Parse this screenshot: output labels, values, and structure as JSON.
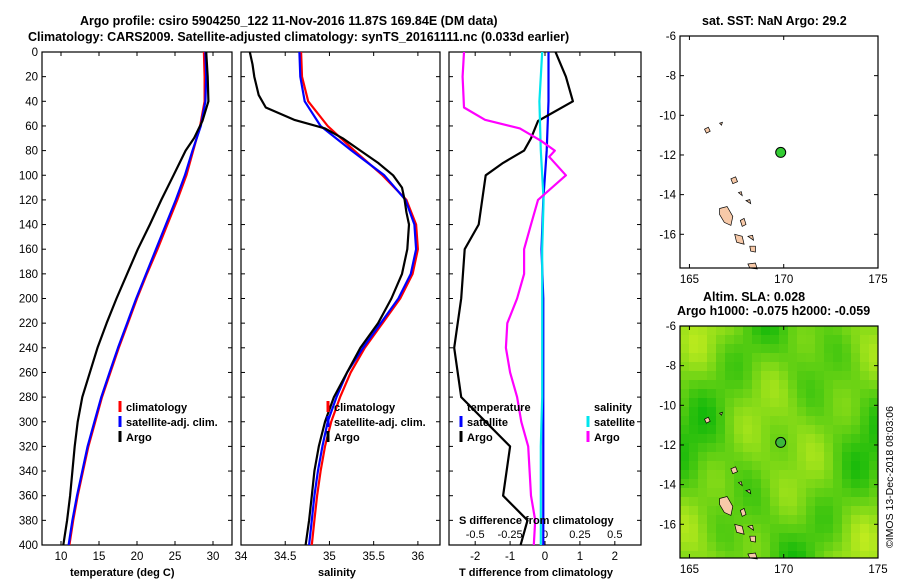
{
  "title": {
    "line1": "Argo profile: csiro 5904250_122 11-Nov-2016 11.87S 169.84E (DM data)",
    "line2": "Climatology: CARS2009. Satellite-adjusted climatology: synTS_20161111.nc (0.033d earlier)"
  },
  "colors": {
    "climatology": "#ff0000",
    "satellite": "#0000ff",
    "argo": "#000000",
    "s_climatology": "#ff00ff",
    "s_satellite": "#00e5ee",
    "land": "#f7c9a8"
  },
  "chart_data": [
    {
      "id": "temperature",
      "type": "line",
      "xlabel": "temperature (deg C)",
      "ylabel": "depth",
      "xlim": [
        7.5,
        32.5
      ],
      "ylim": [
        0,
        400
      ],
      "xticks": [
        "10",
        "15",
        "20",
        "25",
        "30"
      ],
      "yticks": [
        "0",
        "20",
        "40",
        "60",
        "80",
        "100",
        "120",
        "140",
        "160",
        "180",
        "200",
        "220",
        "240",
        "260",
        "280",
        "300",
        "320",
        "340",
        "360",
        "380",
        "400"
      ],
      "legend": [
        "climatology",
        "satellite-adj. clim.",
        "Argo"
      ],
      "series": [
        {
          "name": "climatology",
          "depth": [
            0,
            20,
            40,
            60,
            80,
            100,
            120,
            140,
            160,
            180,
            200,
            220,
            240,
            260,
            280,
            300,
            320,
            340,
            360,
            380,
            400
          ],
          "values": [
            28.8,
            28.9,
            28.9,
            28.3,
            27.4,
            26.5,
            25.3,
            24.0,
            22.7,
            21.3,
            20.0,
            18.8,
            17.6,
            16.5,
            15.4,
            14.5,
            13.6,
            12.9,
            12.2,
            11.6,
            11.1
          ]
        },
        {
          "name": "satellite-adj. clim.",
          "depth": [
            0,
            20,
            40,
            60,
            80,
            100,
            120,
            140,
            160,
            180,
            200,
            220,
            240,
            260,
            280,
            300,
            320,
            340,
            360,
            380,
            400
          ],
          "values": [
            29.0,
            29.1,
            29.0,
            28.4,
            27.3,
            26.3,
            25.1,
            23.8,
            22.5,
            21.2,
            19.9,
            18.7,
            17.5,
            16.4,
            15.3,
            14.4,
            13.5,
            12.8,
            12.1,
            11.5,
            11.0
          ]
        },
        {
          "name": "Argo",
          "depth": [
            0,
            20,
            40,
            56,
            70,
            80,
            90,
            100,
            120,
            140,
            160,
            180,
            200,
            220,
            240,
            260,
            280,
            300,
            320,
            340,
            360,
            380,
            400
          ],
          "values": [
            29.1,
            29.3,
            29.4,
            28.6,
            27.5,
            26.4,
            25.6,
            24.8,
            23.2,
            21.7,
            20.1,
            18.7,
            17.3,
            16.0,
            14.8,
            13.8,
            12.8,
            12.2,
            11.8,
            11.5,
            11.2,
            10.8,
            10.3
          ]
        }
      ]
    },
    {
      "id": "salinity",
      "type": "line",
      "xlabel": "salinity",
      "ylabel": "depth",
      "xlim": [
        34,
        36.25
      ],
      "ylim": [
        0,
        400
      ],
      "xticks": [
        "34",
        "34.5",
        "35",
        "35.5",
        "36"
      ],
      "legend": [
        "climatology",
        "satellite-adj. clim.",
        "Argo"
      ],
      "series": [
        {
          "name": "climatology",
          "depth": [
            0,
            20,
            40,
            60,
            80,
            100,
            120,
            140,
            160,
            180,
            200,
            220,
            240,
            260,
            280,
            300,
            320,
            340,
            360,
            380,
            400
          ],
          "values": [
            34.68,
            34.69,
            34.76,
            34.98,
            35.28,
            35.6,
            35.87,
            35.98,
            36.0,
            35.94,
            35.8,
            35.6,
            35.4,
            35.24,
            35.12,
            35.02,
            34.95,
            34.9,
            34.86,
            34.83,
            34.8
          ]
        },
        {
          "name": "satellite-adj. clim.",
          "depth": [
            0,
            20,
            40,
            60,
            80,
            100,
            120,
            140,
            160,
            180,
            200,
            220,
            240,
            260,
            280,
            300,
            320,
            340,
            360,
            380,
            400
          ],
          "values": [
            34.66,
            34.67,
            34.72,
            34.9,
            35.25,
            35.62,
            35.86,
            35.96,
            35.98,
            35.92,
            35.78,
            35.58,
            35.38,
            35.2,
            35.08,
            34.98,
            34.92,
            34.87,
            34.83,
            34.8,
            34.77
          ]
        },
        {
          "name": "Argo",
          "depth": [
            0,
            10,
            20,
            35,
            45,
            55,
            62,
            70,
            80,
            90,
            100,
            110,
            120,
            130,
            140,
            160,
            180,
            200,
            220,
            240,
            260,
            280,
            300,
            320,
            340,
            360,
            380,
            400
          ],
          "values": [
            34.1,
            34.13,
            34.15,
            34.2,
            34.28,
            34.6,
            34.95,
            35.15,
            35.35,
            35.55,
            35.72,
            35.82,
            35.85,
            35.87,
            35.9,
            35.88,
            35.82,
            35.7,
            35.55,
            35.35,
            35.2,
            35.05,
            34.95,
            34.88,
            34.83,
            34.8,
            34.77,
            34.73
          ]
        }
      ]
    },
    {
      "id": "difference",
      "type": "line",
      "xlabel": "T difference from climatology",
      "xlabel_top": "S difference from climatology",
      "xlim": [
        -2.75,
        2.75
      ],
      "ylim": [
        0,
        400
      ],
      "xticks": [
        "-2",
        "-1",
        "0",
        "1",
        "2"
      ],
      "xticks_top": [
        "-0.5",
        "-0.25",
        "0",
        "0.25",
        "0.5"
      ],
      "legend_left_title": "temperature",
      "legend_right_title": "salinity",
      "legend_left": [
        "satellite",
        "Argo"
      ],
      "legend_right": [
        "satellite",
        "Argo"
      ],
      "series": [
        {
          "name": "temperature satellite",
          "depth": [
            0,
            40,
            80,
            120,
            160,
            200,
            240,
            280,
            320,
            360,
            400
          ],
          "values": [
            0.1,
            0.1,
            0.05,
            -0.05,
            -0.1,
            -0.05,
            -0.05,
            -0.05,
            -0.05,
            -0.05,
            -0.05
          ]
        },
        {
          "name": "temperature Argo",
          "depth": [
            0,
            20,
            40,
            56,
            70,
            80,
            90,
            100,
            120,
            140,
            160,
            200,
            240,
            280,
            320,
            360,
            380,
            400
          ],
          "values": [
            0.3,
            0.6,
            0.8,
            -0.2,
            -0.4,
            -0.6,
            -1.2,
            -1.7,
            -1.8,
            -1.9,
            -2.3,
            -2.4,
            -2.6,
            -2.4,
            -1.0,
            -1.2,
            -0.5,
            -0.7
          ]
        },
        {
          "name": "salinity satellite",
          "depth": [
            0,
            40,
            80,
            120,
            160,
            200,
            240,
            280,
            320,
            360,
            400
          ],
          "values": [
            -0.02,
            -0.04,
            -0.03,
            -0.01,
            -0.02,
            -0.02,
            -0.02,
            -0.02,
            -0.03,
            -0.03,
            -0.03
          ]
        },
        {
          "name": "salinity Argo",
          "depth": [
            0,
            20,
            45,
            55,
            62,
            72,
            80,
            85,
            100,
            120,
            140,
            160,
            180,
            200,
            220,
            240,
            260,
            280,
            300,
            320,
            340,
            360,
            380,
            400
          ],
          "values": [
            -0.58,
            -0.59,
            -0.58,
            -0.43,
            -0.18,
            -0.03,
            0.07,
            0.03,
            0.15,
            -0.05,
            -0.1,
            -0.15,
            -0.15,
            -0.2,
            -0.27,
            -0.28,
            -0.25,
            -0.2,
            -0.17,
            -0.12,
            -0.11,
            -0.1,
            -0.07,
            -0.08
          ]
        }
      ]
    },
    {
      "id": "sst_map",
      "type": "map",
      "title": "sat. SST: NaN Argo: 29.2",
      "xlim": [
        164.5,
        175
      ],
      "ylim": [
        -17.7,
        -6
      ],
      "xticks": [
        "165",
        "170",
        "175"
      ],
      "yticks": [
        "-6",
        "-8",
        "-10",
        "-12",
        "-14",
        "-16"
      ],
      "argo_position": {
        "lon": 169.84,
        "lat": -11.87
      }
    },
    {
      "id": "sla_map",
      "type": "map",
      "title": "Altim. SLA: 0.028",
      "subtitle": "Argo h1000: -0.075 h2000: -0.059",
      "xlim": [
        164.5,
        175
      ],
      "ylim": [
        -17.7,
        -6
      ],
      "xticks": [
        "165",
        "170",
        "175"
      ],
      "yticks": [
        "-6",
        "-8",
        "-10",
        "-12",
        "-14",
        "-16"
      ],
      "argo_position": {
        "lon": 169.84,
        "lat": -11.87
      }
    }
  ],
  "watermark": "©IMOS 13-Dec-2018 08:03:06"
}
